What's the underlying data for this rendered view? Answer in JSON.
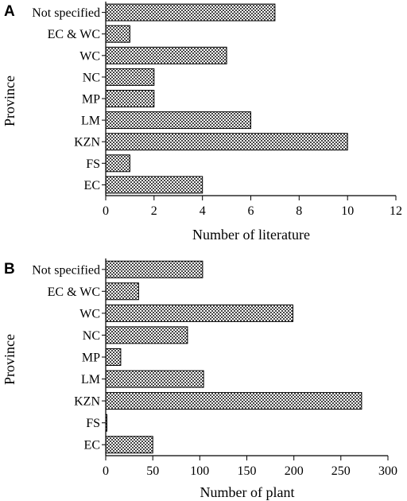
{
  "chart_data": [
    {
      "type": "bar",
      "orientation": "horizontal",
      "panel_label": "A",
      "categories": [
        "EC",
        "FS",
        "KZN",
        "LM",
        "MP",
        "NC",
        "WC",
        "EC & WC",
        "Not specified"
      ],
      "values": [
        4,
        1,
        10,
        6,
        2,
        2,
        5,
        1,
        7
      ],
      "xlabel": "Number of literature",
      "ylabel": "Province",
      "xlim": [
        0,
        12
      ],
      "xticks": [
        "0",
        "2",
        "4",
        "6",
        "8",
        "10",
        "12"
      ],
      "grid": false,
      "bar_fill": "checkered"
    },
    {
      "type": "bar",
      "orientation": "horizontal",
      "panel_label": "B",
      "categories": [
        "EC",
        "FS",
        "KZN",
        "LM",
        "MP",
        "NC",
        "WC",
        "EC & WC",
        "Not specified"
      ],
      "values": [
        50,
        1,
        272,
        104,
        16,
        87,
        199,
        35,
        103
      ],
      "xlabel": "Number of plant",
      "ylabel": "Province",
      "xlim": [
        0,
        300
      ],
      "xticks": [
        "0",
        "50",
        "100",
        "150",
        "200",
        "250",
        "300"
      ],
      "grid": false,
      "bar_fill": "checkered"
    }
  ]
}
